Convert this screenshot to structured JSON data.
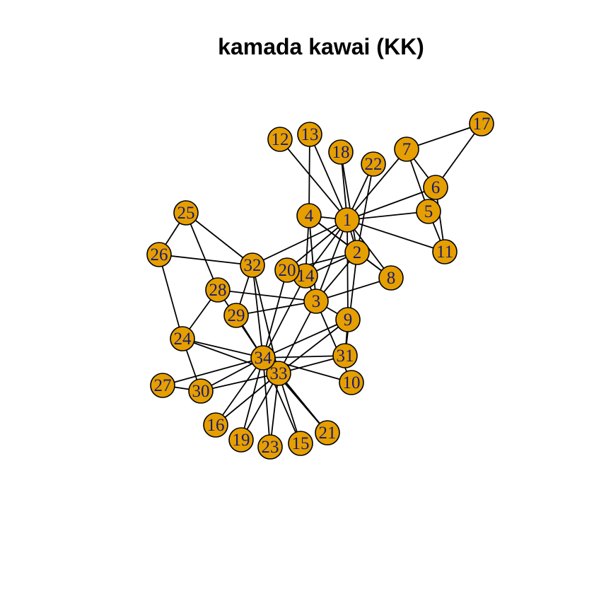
{
  "title": "kamada kawai (KK)",
  "colors": {
    "node_fill": "#E69F00",
    "node_stroke": "#000000",
    "edge": "#000000",
    "label": "#1a1a6e"
  },
  "nodes": [
    {
      "id": "1",
      "label": "1"
    },
    {
      "id": "2",
      "label": "2"
    },
    {
      "id": "3",
      "label": "3"
    },
    {
      "id": "4",
      "label": "4"
    },
    {
      "id": "5",
      "label": "5"
    },
    {
      "id": "6",
      "label": "6"
    },
    {
      "id": "7",
      "label": "7"
    },
    {
      "id": "8",
      "label": "8"
    },
    {
      "id": "9",
      "label": "9"
    },
    {
      "id": "10",
      "label": "10"
    },
    {
      "id": "11",
      "label": "11"
    },
    {
      "id": "12",
      "label": "12"
    },
    {
      "id": "13",
      "label": "13"
    },
    {
      "id": "14",
      "label": "14"
    },
    {
      "id": "15",
      "label": "15"
    },
    {
      "id": "16",
      "label": "16"
    },
    {
      "id": "17",
      "label": "17"
    },
    {
      "id": "18",
      "label": "18"
    },
    {
      "id": "19",
      "label": "19"
    },
    {
      "id": "20",
      "label": "20"
    },
    {
      "id": "21",
      "label": "21"
    },
    {
      "id": "22",
      "label": "22"
    },
    {
      "id": "23",
      "label": "23"
    },
    {
      "id": "24",
      "label": "24"
    },
    {
      "id": "25",
      "label": "25"
    },
    {
      "id": "26",
      "label": "26"
    },
    {
      "id": "27",
      "label": "27"
    },
    {
      "id": "28",
      "label": "28"
    },
    {
      "id": "29",
      "label": "29"
    },
    {
      "id": "30",
      "label": "30"
    },
    {
      "id": "31",
      "label": "31"
    },
    {
      "id": "32",
      "label": "32"
    },
    {
      "id": "33",
      "label": "33"
    },
    {
      "id": "34",
      "label": "34"
    }
  ],
  "edges": [
    [
      "1",
      "2"
    ],
    [
      "1",
      "3"
    ],
    [
      "1",
      "4"
    ],
    [
      "1",
      "5"
    ],
    [
      "1",
      "6"
    ],
    [
      "1",
      "7"
    ],
    [
      "1",
      "8"
    ],
    [
      "1",
      "9"
    ],
    [
      "1",
      "11"
    ],
    [
      "1",
      "12"
    ],
    [
      "1",
      "13"
    ],
    [
      "1",
      "14"
    ],
    [
      "1",
      "18"
    ],
    [
      "1",
      "20"
    ],
    [
      "1",
      "22"
    ],
    [
      "1",
      "32"
    ],
    [
      "2",
      "3"
    ],
    [
      "2",
      "4"
    ],
    [
      "2",
      "8"
    ],
    [
      "2",
      "14"
    ],
    [
      "2",
      "18"
    ],
    [
      "2",
      "20"
    ],
    [
      "2",
      "22"
    ],
    [
      "2",
      "31"
    ],
    [
      "3",
      "4"
    ],
    [
      "3",
      "8"
    ],
    [
      "3",
      "9"
    ],
    [
      "3",
      "10"
    ],
    [
      "3",
      "14"
    ],
    [
      "3",
      "28"
    ],
    [
      "3",
      "29"
    ],
    [
      "3",
      "33"
    ],
    [
      "4",
      "8"
    ],
    [
      "4",
      "13"
    ],
    [
      "4",
      "14"
    ],
    [
      "5",
      "7"
    ],
    [
      "5",
      "11"
    ],
    [
      "6",
      "7"
    ],
    [
      "6",
      "11"
    ],
    [
      "6",
      "17"
    ],
    [
      "7",
      "17"
    ],
    [
      "9",
      "31"
    ],
    [
      "9",
      "33"
    ],
    [
      "9",
      "34"
    ],
    [
      "10",
      "34"
    ],
    [
      "14",
      "34"
    ],
    [
      "15",
      "33"
    ],
    [
      "15",
      "34"
    ],
    [
      "16",
      "33"
    ],
    [
      "16",
      "34"
    ],
    [
      "19",
      "33"
    ],
    [
      "19",
      "34"
    ],
    [
      "20",
      "34"
    ],
    [
      "21",
      "33"
    ],
    [
      "21",
      "34"
    ],
    [
      "23",
      "33"
    ],
    [
      "23",
      "34"
    ],
    [
      "24",
      "26"
    ],
    [
      "24",
      "28"
    ],
    [
      "24",
      "30"
    ],
    [
      "24",
      "33"
    ],
    [
      "24",
      "34"
    ],
    [
      "25",
      "26"
    ],
    [
      "25",
      "28"
    ],
    [
      "25",
      "32"
    ],
    [
      "26",
      "32"
    ],
    [
      "27",
      "30"
    ],
    [
      "27",
      "34"
    ],
    [
      "28",
      "34"
    ],
    [
      "29",
      "32"
    ],
    [
      "29",
      "34"
    ],
    [
      "30",
      "33"
    ],
    [
      "30",
      "34"
    ],
    [
      "31",
      "33"
    ],
    [
      "31",
      "34"
    ],
    [
      "32",
      "33"
    ],
    [
      "32",
      "34"
    ],
    [
      "33",
      "34"
    ]
  ]
}
